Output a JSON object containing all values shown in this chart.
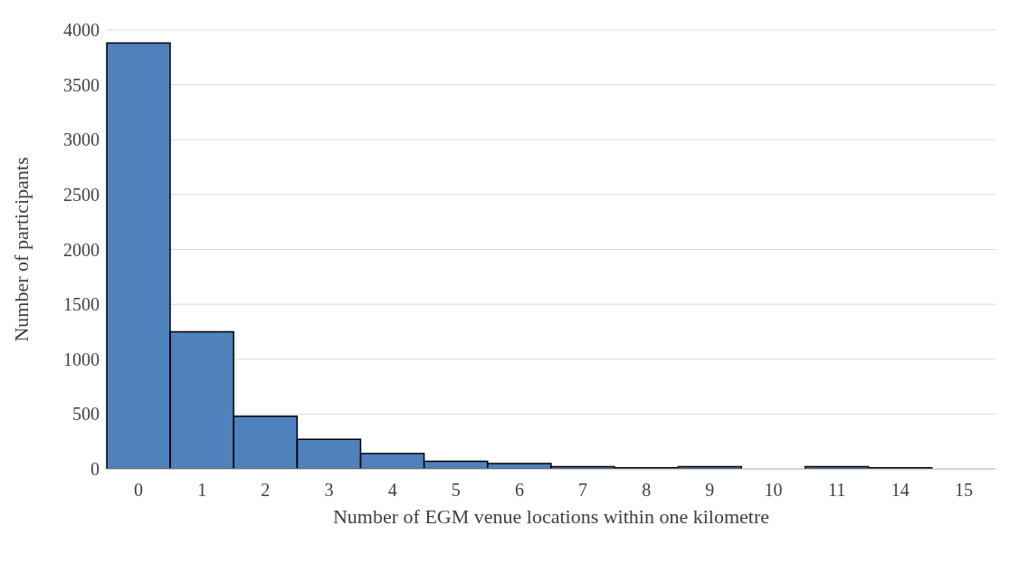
{
  "chart_data": {
    "type": "bar",
    "xlabel": "Number of EGM venue locations within one kilometre",
    "ylabel": "Number of participants",
    "categories": [
      "0",
      "1",
      "2",
      "3",
      "4",
      "5",
      "6",
      "7",
      "8",
      "9",
      "10",
      "11",
      "14",
      "15"
    ],
    "values": [
      3880,
      1250,
      480,
      270,
      140,
      70,
      50,
      20,
      10,
      20,
      null,
      20,
      10,
      null
    ],
    "color": "#4f81bd",
    "ylim": [
      0,
      4000
    ],
    "yticks": [
      0,
      500,
      1000,
      1500,
      2000,
      2500,
      3000,
      3500,
      4000
    ],
    "grid": "y"
  }
}
